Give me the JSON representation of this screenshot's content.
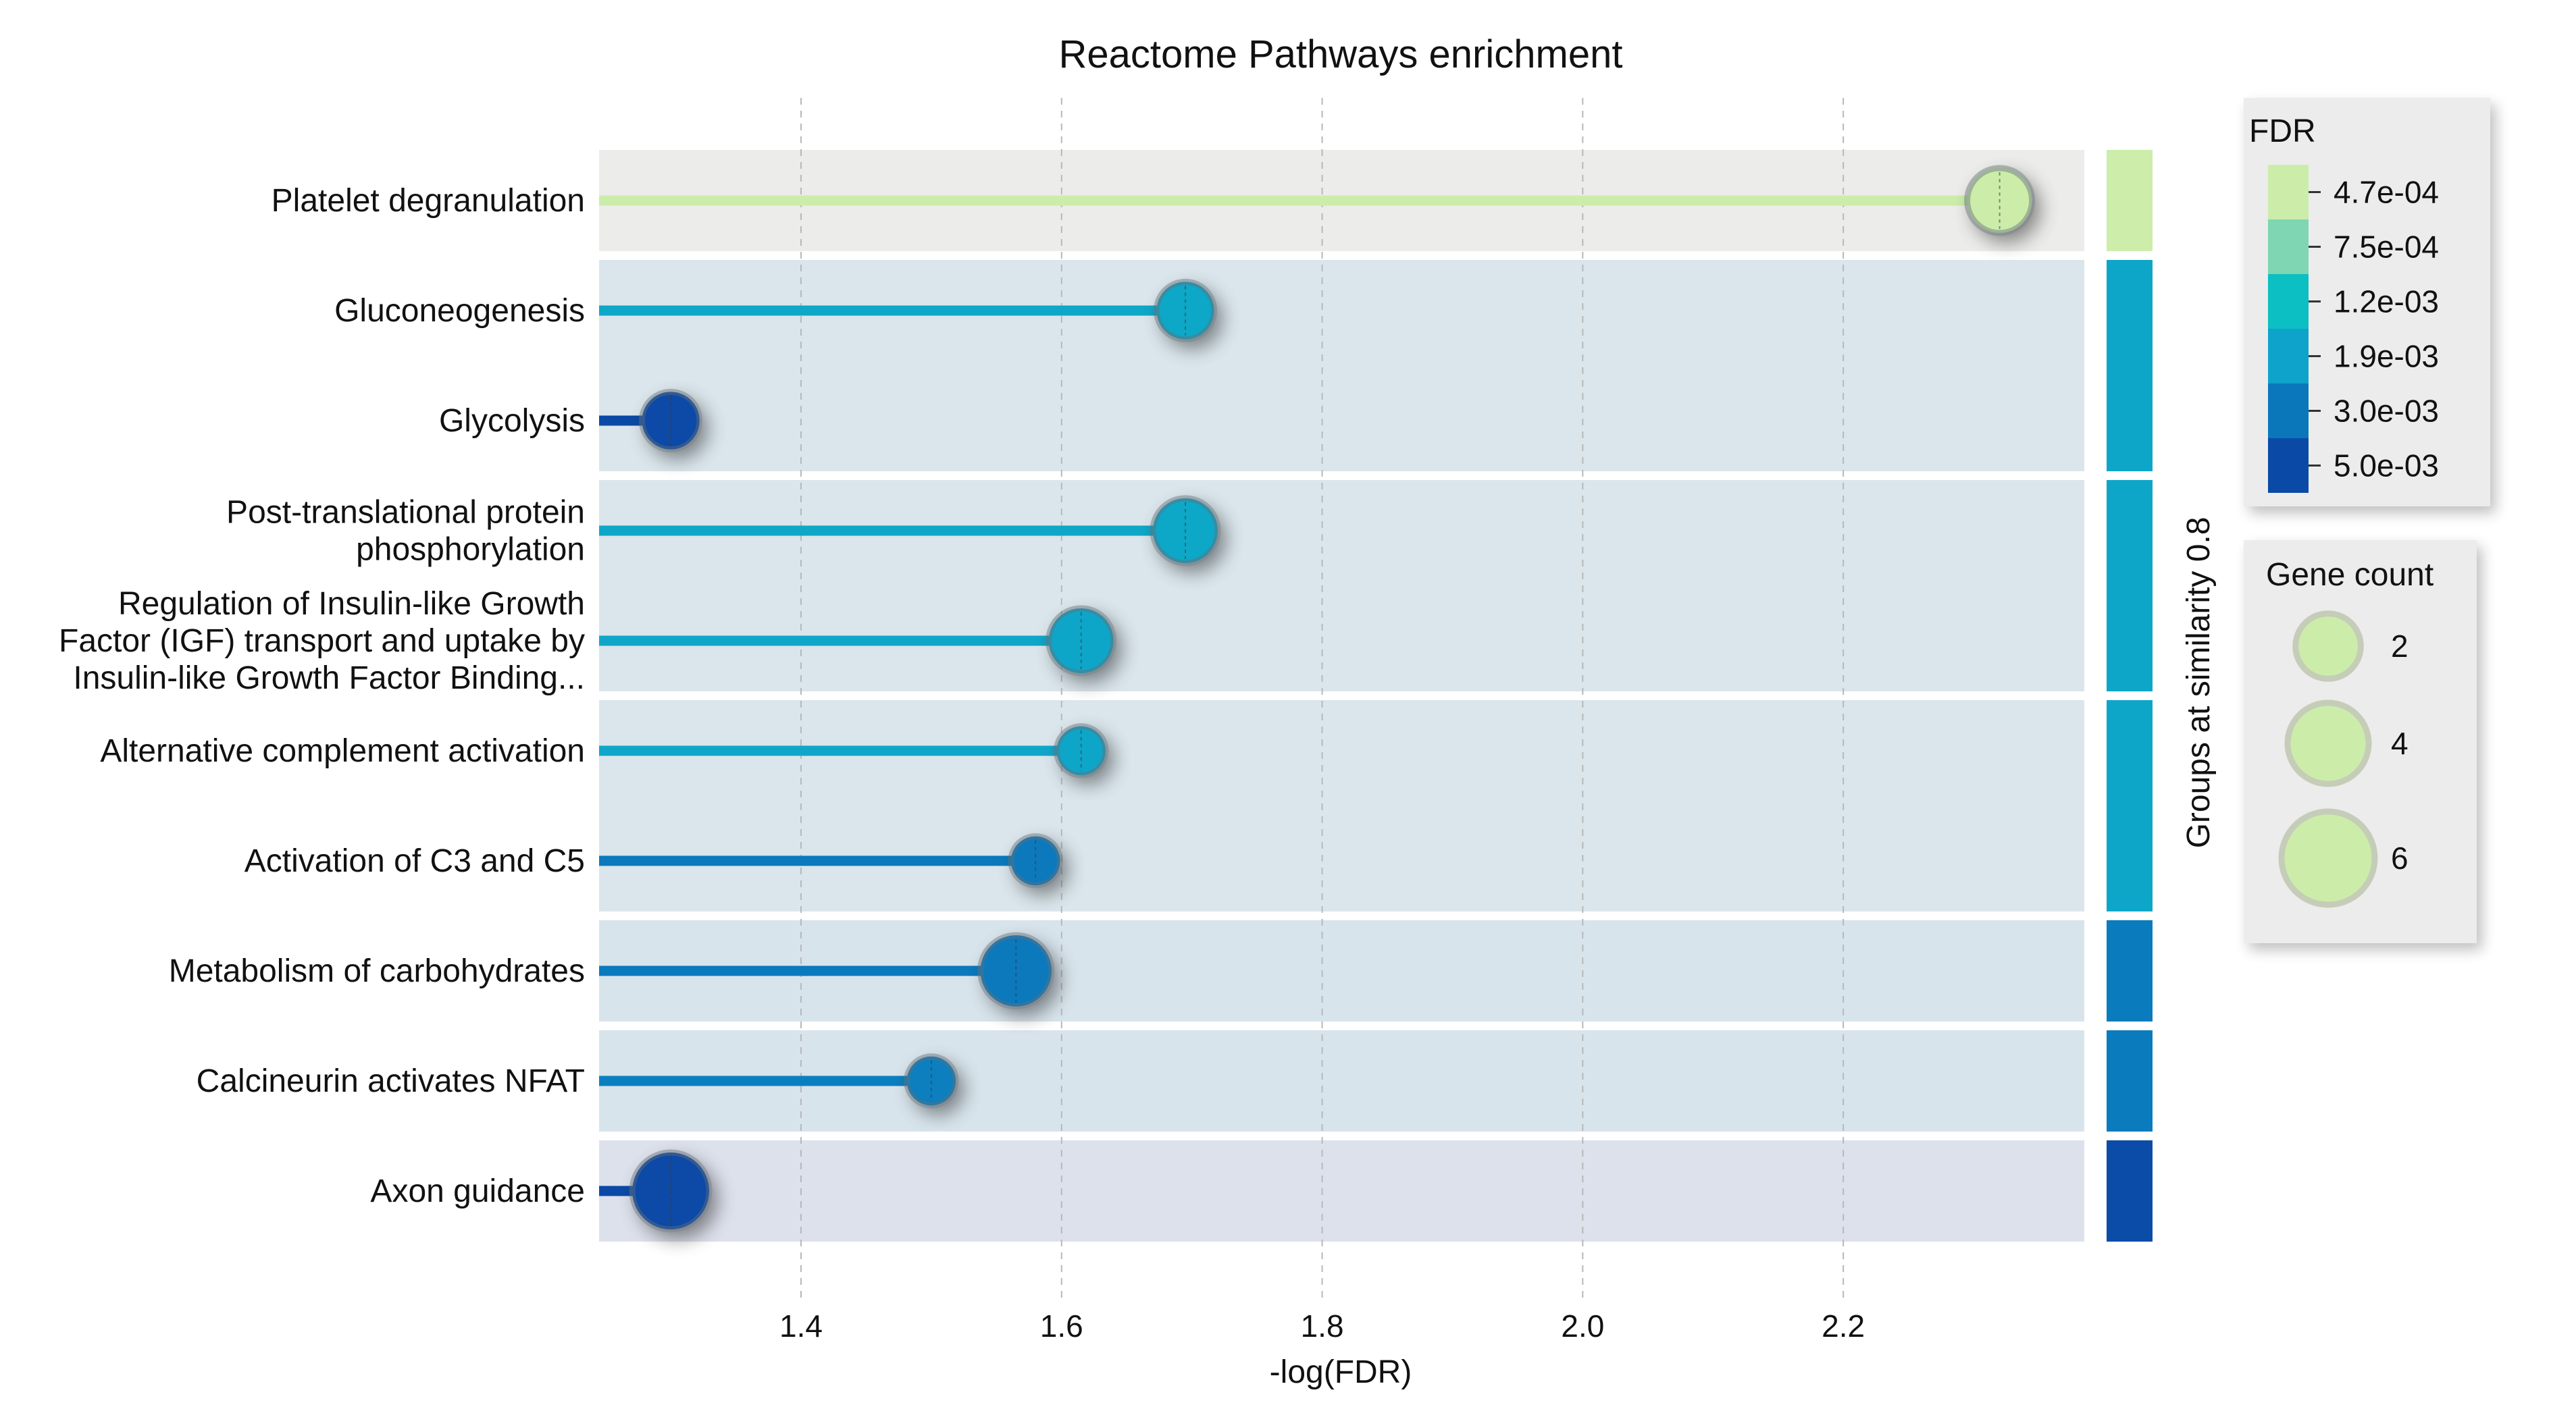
{
  "chart_data": {
    "type": "lollipop",
    "title": "Reactome Pathways enrichment",
    "xlabel": "-log(FDR)",
    "xlim": [
      1.245,
      2.385
    ],
    "xticks": [
      1.4,
      1.6,
      1.8,
      2.0,
      2.2
    ],
    "xtick_labels": [
      "1.4",
      "1.6",
      "1.8",
      "2.0",
      "2.2"
    ],
    "categories": [
      [
        "Platelet degranulation"
      ],
      [
        "Gluconeogenesis"
      ],
      [
        "Glycolysis"
      ],
      [
        "Post-translational protein",
        "phosphorylation"
      ],
      [
        "Regulation of Insulin-like Growth",
        "Factor (IGF) transport and uptake by",
        "Insulin-like Growth Factor Binding..."
      ],
      [
        "Alternative complement activation"
      ],
      [
        "Activation of C3 and C5"
      ],
      [
        "Metabolism of carbohydrates"
      ],
      [
        "Calcineurin activates NFAT"
      ],
      [
        "Axon guidance"
      ]
    ],
    "values": [
      2.32,
      1.695,
      1.3,
      1.695,
      1.615,
      1.615,
      1.58,
      1.565,
      1.5,
      1.3
    ],
    "gene_counts": [
      4,
      3,
      3,
      4,
      4,
      2,
      2,
      5,
      2,
      6
    ],
    "fdr": [
      0.00047,
      0.002,
      0.005,
      0.002,
      0.0024,
      0.0024,
      0.0026,
      0.0027,
      0.0031,
      0.005
    ],
    "colors": [
      "#ccedaa",
      "#0ea7c7",
      "#0a4aa6",
      "#0ea7c7",
      "#10a6c9",
      "#10a6c9",
      "#0a79bd",
      "#0a79bd",
      "#0a7fbf",
      "#0a4aa6"
    ],
    "group_label": "Groups at similarity 0.8",
    "groups": [
      {
        "rows": [
          0,
          0
        ],
        "color": "#cceeaa",
        "band": "#ececea"
      },
      {
        "rows": [
          1,
          2
        ],
        "color": "#0ea6c8",
        "band": "#dae6ec"
      },
      {
        "rows": [
          3,
          4
        ],
        "color": "#0ea6c8",
        "band": "#dae6ec"
      },
      {
        "rows": [
          5,
          6
        ],
        "color": "#0ea6c8",
        "band": "#dae6ec"
      },
      {
        "rows": [
          7,
          7
        ],
        "color": "#0a7bbd",
        "band": "#d8e4ec"
      },
      {
        "rows": [
          8,
          8
        ],
        "color": "#0a7bbd",
        "band": "#d8e4ec"
      },
      {
        "rows": [
          9,
          9
        ],
        "color": "#0a4ca8",
        "band": "#dde1ec"
      }
    ],
    "fdr_legend": {
      "title": "FDR",
      "labels": [
        "4.7e-04",
        "7.5e-04",
        "1.2e-03",
        "1.9e-03",
        "3.0e-03",
        "5.0e-03"
      ],
      "colors": [
        "#ccedaa",
        "#7fd6b2",
        "#0bbfc2",
        "#0da3cb",
        "#0a77bb",
        "#0a4aa6"
      ]
    },
    "size_legend": {
      "title": "Gene count",
      "values": [
        2,
        4,
        6
      ],
      "labels": [
        "2",
        "4",
        "6"
      ],
      "color": "#ccedaa"
    }
  }
}
